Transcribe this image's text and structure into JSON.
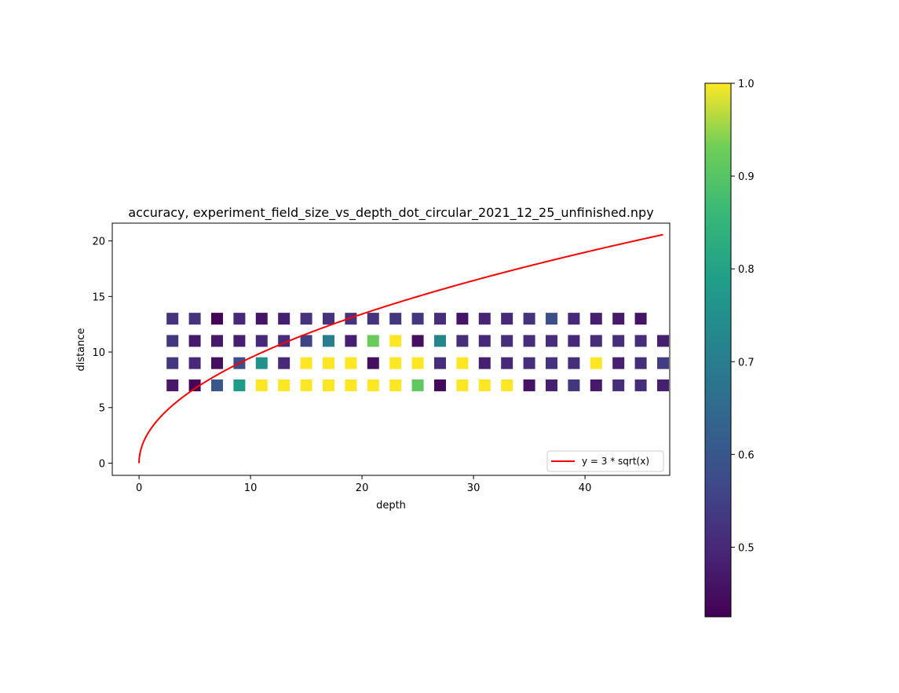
{
  "chart_data": {
    "type": "heatmap",
    "title": "accuracy, experiment_field_size_vs_depth_dot_circular_2021_12_25_unfinished.npy",
    "xlabel": "depth",
    "ylabel": "distance",
    "xlim": [
      -2.4,
      47.6
    ],
    "ylim": [
      -1.1,
      21.6
    ],
    "xticks": [
      0,
      10,
      20,
      30,
      40
    ],
    "yticks": [
      0,
      5,
      10,
      15,
      20
    ],
    "grid": false,
    "legend": {
      "placement": "lower right",
      "entries": [
        {
          "label": "y = 3 * sqrt(x)",
          "color": "#ff0000"
        }
      ]
    },
    "colormap": "viridis",
    "colorbar": {
      "min": 0.425,
      "max": 1.0,
      "ticks": [
        0.5,
        0.6,
        0.7,
        0.8,
        0.9,
        1.0
      ]
    },
    "x": [
      3,
      5,
      7,
      9,
      11,
      13,
      15,
      17,
      19,
      21,
      23,
      25,
      27,
      29,
      31,
      33,
      35,
      37,
      39,
      41,
      43,
      45,
      47
    ],
    "rows": [
      {
        "y": 13,
        "values": [
          0.52,
          0.52,
          0.43,
          0.5,
          0.46,
          0.48,
          0.52,
          0.52,
          0.52,
          0.52,
          0.53,
          0.53,
          0.51,
          0.46,
          0.49,
          0.5,
          0.52,
          0.58,
          0.5,
          0.48,
          0.47,
          0.46,
          null
        ]
      },
      {
        "y": 11,
        "values": [
          0.53,
          0.47,
          0.47,
          0.48,
          0.5,
          0.51,
          0.55,
          0.7,
          0.48,
          0.92,
          1.0,
          0.45,
          0.72,
          0.51,
          0.5,
          0.51,
          0.51,
          0.51,
          0.5,
          0.51,
          0.51,
          0.51,
          0.48
        ]
      },
      {
        "y": 9,
        "values": [
          0.53,
          0.5,
          0.45,
          0.58,
          0.75,
          0.5,
          1.0,
          1.0,
          1.0,
          0.45,
          1.0,
          1.0,
          0.51,
          1.0,
          0.48,
          0.5,
          0.51,
          0.52,
          0.51,
          1.0,
          0.48,
          0.51,
          0.54
        ]
      },
      {
        "y": 7,
        "values": [
          0.47,
          0.43,
          0.6,
          0.78,
          1.0,
          1.0,
          1.0,
          1.0,
          1.0,
          1.0,
          1.0,
          0.91,
          0.44,
          1.0,
          1.0,
          1.0,
          0.46,
          0.48,
          0.53,
          0.47,
          0.51,
          0.51,
          0.48
        ]
      }
    ],
    "series": [
      {
        "name": "y = 3 * sqrt(x)",
        "type": "line",
        "function": "3*sqrt(x)",
        "x_range": [
          0,
          47
        ],
        "color": "#ff0000"
      }
    ]
  }
}
